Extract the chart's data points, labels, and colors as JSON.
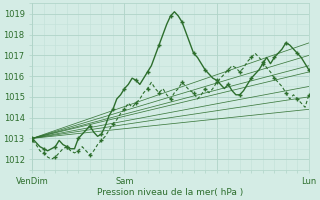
{
  "xlabel": "Pression niveau de la mer( hPa )",
  "xlim": [
    0,
    72
  ],
  "ylim": [
    1011.5,
    1019.5
  ],
  "yticks": [
    1012,
    1013,
    1014,
    1015,
    1016,
    1017,
    1018,
    1019
  ],
  "xtick_positions": [
    0,
    24,
    48,
    72
  ],
  "xtick_labels": [
    "VenDim",
    "Sam",
    "",
    "Lun"
  ],
  "background_color": "#d4ece5",
  "grid_major_color": "#b0d4c8",
  "grid_minor_color": "#c2e0d8",
  "line_color": "#2d6e2d",
  "noisy_main_x": [
    0,
    1,
    2,
    3,
    4,
    5,
    6,
    7,
    8,
    9,
    10,
    11,
    12,
    13,
    14,
    15,
    16,
    17,
    18,
    19,
    20,
    21,
    22,
    23,
    24,
    25,
    26,
    27,
    28,
    29,
    30,
    31,
    32,
    33,
    34,
    35,
    36,
    37,
    38,
    39,
    40,
    41,
    42,
    43,
    44,
    45,
    46,
    47,
    48,
    49,
    50,
    51,
    52,
    53,
    54,
    55,
    56,
    57,
    58,
    59,
    60,
    61,
    62,
    63,
    64,
    65,
    66,
    67,
    68,
    69,
    70,
    71,
    72
  ],
  "noisy_main_y": [
    1013.0,
    1012.8,
    1012.6,
    1012.5,
    1012.4,
    1012.5,
    1012.6,
    1012.9,
    1012.7,
    1012.6,
    1012.5,
    1012.5,
    1013.0,
    1013.2,
    1013.4,
    1013.6,
    1013.3,
    1013.1,
    1013.2,
    1013.6,
    1014.1,
    1014.4,
    1014.9,
    1015.1,
    1015.4,
    1015.6,
    1015.9,
    1015.8,
    1015.6,
    1015.9,
    1016.2,
    1016.5,
    1017.0,
    1017.5,
    1018.0,
    1018.5,
    1018.9,
    1019.1,
    1018.9,
    1018.6,
    1018.1,
    1017.6,
    1017.1,
    1016.9,
    1016.6,
    1016.3,
    1016.1,
    1015.9,
    1015.8,
    1015.6,
    1015.4,
    1015.6,
    1015.3,
    1015.1,
    1015.1,
    1015.3,
    1015.6,
    1015.9,
    1016.1,
    1016.3,
    1016.6,
    1016.9,
    1016.6,
    1016.9,
    1017.1,
    1017.3,
    1017.6,
    1017.5,
    1017.3,
    1017.1,
    1016.9,
    1016.6,
    1016.3
  ],
  "noisy_low_x": [
    0,
    1,
    2,
    3,
    4,
    5,
    6,
    7,
    8,
    9,
    10,
    11,
    12,
    13,
    14,
    15,
    16,
    17,
    18,
    19,
    20,
    21,
    22,
    23,
    24,
    25,
    26,
    27,
    28,
    29,
    30,
    31,
    32,
    33,
    34,
    35,
    36,
    37,
    38,
    39,
    40,
    41,
    42,
    43,
    44,
    45,
    46,
    47,
    48,
    49,
    50,
    51,
    52,
    53,
    54,
    55,
    56,
    57,
    58,
    59,
    60,
    61,
    62,
    63,
    64,
    65,
    66,
    67,
    68,
    69,
    70,
    71,
    72
  ],
  "noisy_low_y": [
    1012.9,
    1012.7,
    1012.4,
    1012.3,
    1012.1,
    1012.0,
    1012.1,
    1012.3,
    1012.5,
    1012.6,
    1012.4,
    1012.3,
    1012.4,
    1012.6,
    1012.4,
    1012.2,
    1012.4,
    1012.7,
    1012.9,
    1013.1,
    1013.4,
    1013.7,
    1013.9,
    1014.2,
    1014.4,
    1014.7,
    1014.5,
    1014.7,
    1014.9,
    1015.2,
    1015.4,
    1015.7,
    1015.4,
    1015.2,
    1015.4,
    1015.1,
    1014.9,
    1015.2,
    1015.4,
    1015.7,
    1015.5,
    1015.3,
    1015.2,
    1014.9,
    1015.1,
    1015.4,
    1015.2,
    1015.4,
    1015.7,
    1015.9,
    1016.1,
    1016.3,
    1016.5,
    1016.4,
    1016.2,
    1016.4,
    1016.7,
    1016.9,
    1017.1,
    1016.9,
    1016.7,
    1016.4,
    1016.2,
    1015.9,
    1015.7,
    1015.5,
    1015.2,
    1014.9,
    1015.1,
    1014.9,
    1014.7,
    1014.5,
    1015.1
  ],
  "fan_lines": [
    {
      "x": [
        0,
        72
      ],
      "y": [
        1013.0,
        1017.6
      ]
    },
    {
      "x": [
        0,
        72
      ],
      "y": [
        1013.0,
        1017.0
      ]
    },
    {
      "x": [
        0,
        72
      ],
      "y": [
        1013.0,
        1016.5
      ]
    },
    {
      "x": [
        0,
        72
      ],
      "y": [
        1013.0,
        1016.2
      ]
    },
    {
      "x": [
        0,
        72
      ],
      "y": [
        1013.0,
        1015.5
      ]
    },
    {
      "x": [
        0,
        72
      ],
      "y": [
        1013.0,
        1015.0
      ]
    },
    {
      "x": [
        0,
        72
      ],
      "y": [
        1013.0,
        1014.4
      ]
    }
  ]
}
